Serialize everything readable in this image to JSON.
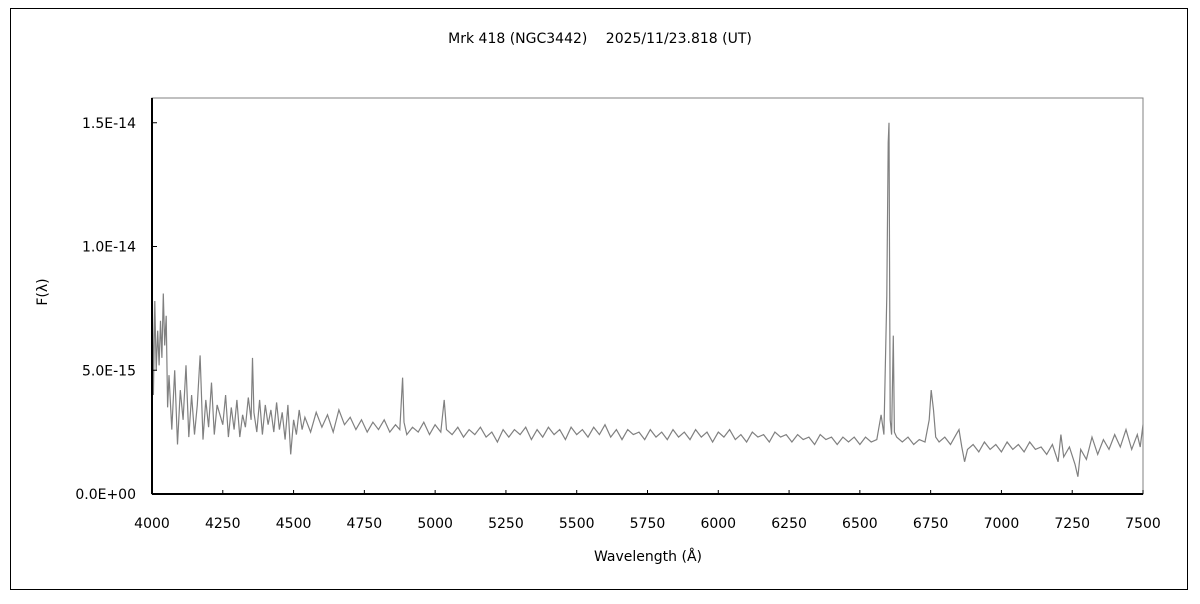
{
  "chart_data": {
    "type": "line",
    "title": "Mrk 418 (NGC3442)　 2025/11/23.818 (UT)",
    "xlabel": "Wavelength (Å)",
    "ylabel": "F(λ)",
    "xlim": [
      4000,
      7500
    ],
    "ylim": [
      0,
      1.6e-14
    ],
    "xticks": [
      4000,
      4250,
      4500,
      4750,
      5000,
      5250,
      5500,
      5750,
      6000,
      6250,
      6500,
      6750,
      7000,
      7250,
      7500
    ],
    "xtick_labels": [
      "4000",
      "4250",
      "4500",
      "4750",
      "5000",
      "5250",
      "5500",
      "5750",
      "6000",
      "6250",
      "6500",
      "6750",
      "7000",
      "7250",
      "7500"
    ],
    "yticks": [
      0,
      5e-15,
      1e-14,
      1.5e-14
    ],
    "ytick_labels": [
      "0.0E+00",
      "5.0E-15",
      "1.0E-14",
      "1.5E-14"
    ],
    "grid": false,
    "legend": "none",
    "line_color": "#808080",
    "series": [
      {
        "points": [
          [
            4000,
            9.5e-15
          ],
          [
            4005,
            4e-15
          ],
          [
            4010,
            7.8e-15
          ],
          [
            4015,
            5e-15
          ],
          [
            4020,
            6.6e-15
          ],
          [
            4025,
            5.2e-15
          ],
          [
            4030,
            7e-15
          ],
          [
            4035,
            5.5e-15
          ],
          [
            4040,
            8.1e-15
          ],
          [
            4045,
            6e-15
          ],
          [
            4050,
            7.2e-15
          ],
          [
            4055,
            3.5e-15
          ],
          [
            4060,
            4.8e-15
          ],
          [
            4070,
            2.6e-15
          ],
          [
            4080,
            5e-15
          ],
          [
            4090,
            2e-15
          ],
          [
            4100,
            4.2e-15
          ],
          [
            4110,
            3e-15
          ],
          [
            4120,
            5.2e-15
          ],
          [
            4130,
            2.3e-15
          ],
          [
            4140,
            4e-15
          ],
          [
            4150,
            2.4e-15
          ],
          [
            4160,
            3.6e-15
          ],
          [
            4170,
            5.6e-15
          ],
          [
            4180,
            2.2e-15
          ],
          [
            4190,
            3.8e-15
          ],
          [
            4200,
            2.7e-15
          ],
          [
            4210,
            4.5e-15
          ],
          [
            4220,
            2.4e-15
          ],
          [
            4230,
            3.6e-15
          ],
          [
            4250,
            2.8e-15
          ],
          [
            4260,
            4e-15
          ],
          [
            4270,
            2.3e-15
          ],
          [
            4280,
            3.5e-15
          ],
          [
            4290,
            2.6e-15
          ],
          [
            4300,
            3.8e-15
          ],
          [
            4310,
            2.3e-15
          ],
          [
            4320,
            3.2e-15
          ],
          [
            4330,
            2.7e-15
          ],
          [
            4340,
            3.9e-15
          ],
          [
            4350,
            3e-15
          ],
          [
            4355,
            5.5e-15
          ],
          [
            4360,
            3.3e-15
          ],
          [
            4370,
            2.5e-15
          ],
          [
            4380,
            3.8e-15
          ],
          [
            4390,
            2.4e-15
          ],
          [
            4400,
            3.6e-15
          ],
          [
            4410,
            2.8e-15
          ],
          [
            4420,
            3.4e-15
          ],
          [
            4430,
            2.5e-15
          ],
          [
            4440,
            3.7e-15
          ],
          [
            4450,
            2.6e-15
          ],
          [
            4460,
            3.3e-15
          ],
          [
            4470,
            2.2e-15
          ],
          [
            4480,
            3.6e-15
          ],
          [
            4490,
            1.6e-15
          ],
          [
            4500,
            3e-15
          ],
          [
            4510,
            2.4e-15
          ],
          [
            4520,
            3.4e-15
          ],
          [
            4530,
            2.6e-15
          ],
          [
            4540,
            3.1e-15
          ],
          [
            4560,
            2.5e-15
          ],
          [
            4580,
            3.3e-15
          ],
          [
            4600,
            2.7e-15
          ],
          [
            4620,
            3.2e-15
          ],
          [
            4640,
            2.5e-15
          ],
          [
            4660,
            3.4e-15
          ],
          [
            4680,
            2.8e-15
          ],
          [
            4700,
            3.1e-15
          ],
          [
            4720,
            2.6e-15
          ],
          [
            4740,
            3e-15
          ],
          [
            4760,
            2.5e-15
          ],
          [
            4780,
            2.9e-15
          ],
          [
            4800,
            2.6e-15
          ],
          [
            4820,
            3e-15
          ],
          [
            4840,
            2.5e-15
          ],
          [
            4860,
            2.8e-15
          ],
          [
            4875,
            2.6e-15
          ],
          [
            4885,
            4.7e-15
          ],
          [
            4890,
            2.9e-15
          ],
          [
            4900,
            2.4e-15
          ],
          [
            4920,
            2.7e-15
          ],
          [
            4940,
            2.5e-15
          ],
          [
            4960,
            2.9e-15
          ],
          [
            4980,
            2.4e-15
          ],
          [
            5000,
            2.8e-15
          ],
          [
            5020,
            2.5e-15
          ],
          [
            5032,
            3.8e-15
          ],
          [
            5040,
            2.6e-15
          ],
          [
            5060,
            2.4e-15
          ],
          [
            5080,
            2.7e-15
          ],
          [
            5100,
            2.3e-15
          ],
          [
            5120,
            2.6e-15
          ],
          [
            5140,
            2.4e-15
          ],
          [
            5160,
            2.7e-15
          ],
          [
            5180,
            2.3e-15
          ],
          [
            5200,
            2.5e-15
          ],
          [
            5220,
            2.1e-15
          ],
          [
            5240,
            2.6e-15
          ],
          [
            5260,
            2.3e-15
          ],
          [
            5280,
            2.6e-15
          ],
          [
            5300,
            2.4e-15
          ],
          [
            5320,
            2.7e-15
          ],
          [
            5340,
            2.2e-15
          ],
          [
            5360,
            2.6e-15
          ],
          [
            5380,
            2.3e-15
          ],
          [
            5400,
            2.7e-15
          ],
          [
            5420,
            2.4e-15
          ],
          [
            5440,
            2.6e-15
          ],
          [
            5460,
            2.2e-15
          ],
          [
            5480,
            2.7e-15
          ],
          [
            5500,
            2.4e-15
          ],
          [
            5520,
            2.6e-15
          ],
          [
            5540,
            2.3e-15
          ],
          [
            5560,
            2.7e-15
          ],
          [
            5580,
            2.4e-15
          ],
          [
            5600,
            2.8e-15
          ],
          [
            5620,
            2.3e-15
          ],
          [
            5640,
            2.6e-15
          ],
          [
            5660,
            2.2e-15
          ],
          [
            5680,
            2.6e-15
          ],
          [
            5700,
            2.4e-15
          ],
          [
            5720,
            2.5e-15
          ],
          [
            5740,
            2.2e-15
          ],
          [
            5760,
            2.6e-15
          ],
          [
            5780,
            2.3e-15
          ],
          [
            5800,
            2.5e-15
          ],
          [
            5820,
            2.2e-15
          ],
          [
            5840,
            2.6e-15
          ],
          [
            5860,
            2.3e-15
          ],
          [
            5880,
            2.5e-15
          ],
          [
            5900,
            2.2e-15
          ],
          [
            5920,
            2.6e-15
          ],
          [
            5940,
            2.3e-15
          ],
          [
            5960,
            2.5e-15
          ],
          [
            5980,
            2.1e-15
          ],
          [
            6000,
            2.5e-15
          ],
          [
            6020,
            2.3e-15
          ],
          [
            6040,
            2.6e-15
          ],
          [
            6060,
            2.2e-15
          ],
          [
            6080,
            2.4e-15
          ],
          [
            6100,
            2.1e-15
          ],
          [
            6120,
            2.5e-15
          ],
          [
            6140,
            2.3e-15
          ],
          [
            6160,
            2.4e-15
          ],
          [
            6180,
            2.1e-15
          ],
          [
            6200,
            2.5e-15
          ],
          [
            6220,
            2.3e-15
          ],
          [
            6240,
            2.4e-15
          ],
          [
            6260,
            2.1e-15
          ],
          [
            6280,
            2.4e-15
          ],
          [
            6300,
            2.2e-15
          ],
          [
            6320,
            2.3e-15
          ],
          [
            6340,
            2e-15
          ],
          [
            6360,
            2.4e-15
          ],
          [
            6380,
            2.2e-15
          ],
          [
            6400,
            2.3e-15
          ],
          [
            6420,
            2e-15
          ],
          [
            6440,
            2.3e-15
          ],
          [
            6460,
            2.1e-15
          ],
          [
            6480,
            2.3e-15
          ],
          [
            6500,
            2e-15
          ],
          [
            6520,
            2.3e-15
          ],
          [
            6540,
            2.1e-15
          ],
          [
            6560,
            2.2e-15
          ],
          [
            6575,
            3.2e-15
          ],
          [
            6585,
            2.4e-15
          ],
          [
            6595,
            8e-15
          ],
          [
            6600,
            1.42e-14
          ],
          [
            6603,
            1.5e-14
          ],
          [
            6607,
            3e-15
          ],
          [
            6612,
            2.4e-15
          ],
          [
            6618,
            6.4e-15
          ],
          [
            6622,
            2.5e-15
          ],
          [
            6630,
            2.3e-15
          ],
          [
            6650,
            2.1e-15
          ],
          [
            6670,
            2.3e-15
          ],
          [
            6690,
            2e-15
          ],
          [
            6710,
            2.2e-15
          ],
          [
            6730,
            2.1e-15
          ],
          [
            6745,
            3e-15
          ],
          [
            6752,
            4.2e-15
          ],
          [
            6760,
            3.4e-15
          ],
          [
            6768,
            2.3e-15
          ],
          [
            6780,
            2.1e-15
          ],
          [
            6800,
            2.3e-15
          ],
          [
            6820,
            2e-15
          ],
          [
            6840,
            2.4e-15
          ],
          [
            6850,
            2.6e-15
          ],
          [
            6860,
            1.9e-15
          ],
          [
            6870,
            1.3e-15
          ],
          [
            6880,
            1.8e-15
          ],
          [
            6900,
            2e-15
          ],
          [
            6920,
            1.7e-15
          ],
          [
            6940,
            2.1e-15
          ],
          [
            6960,
            1.8e-15
          ],
          [
            6980,
            2e-15
          ],
          [
            7000,
            1.7e-15
          ],
          [
            7020,
            2.1e-15
          ],
          [
            7040,
            1.8e-15
          ],
          [
            7060,
            2e-15
          ],
          [
            7080,
            1.7e-15
          ],
          [
            7100,
            2.1e-15
          ],
          [
            7120,
            1.8e-15
          ],
          [
            7140,
            1.9e-15
          ],
          [
            7160,
            1.6e-15
          ],
          [
            7180,
            2e-15
          ],
          [
            7200,
            1.3e-15
          ],
          [
            7210,
            2.4e-15
          ],
          [
            7220,
            1.5e-15
          ],
          [
            7240,
            1.9e-15
          ],
          [
            7260,
            1.2e-15
          ],
          [
            7270,
            7e-16
          ],
          [
            7280,
            1.8e-15
          ],
          [
            7300,
            1.4e-15
          ],
          [
            7320,
            2.3e-15
          ],
          [
            7340,
            1.6e-15
          ],
          [
            7360,
            2.2e-15
          ],
          [
            7380,
            1.8e-15
          ],
          [
            7400,
            2.4e-15
          ],
          [
            7420,
            1.9e-15
          ],
          [
            7440,
            2.6e-15
          ],
          [
            7460,
            1.8e-15
          ],
          [
            7480,
            2.4e-15
          ],
          [
            7490,
            1.9e-15
          ],
          [
            7500,
            2.8e-15
          ]
        ]
      }
    ]
  }
}
